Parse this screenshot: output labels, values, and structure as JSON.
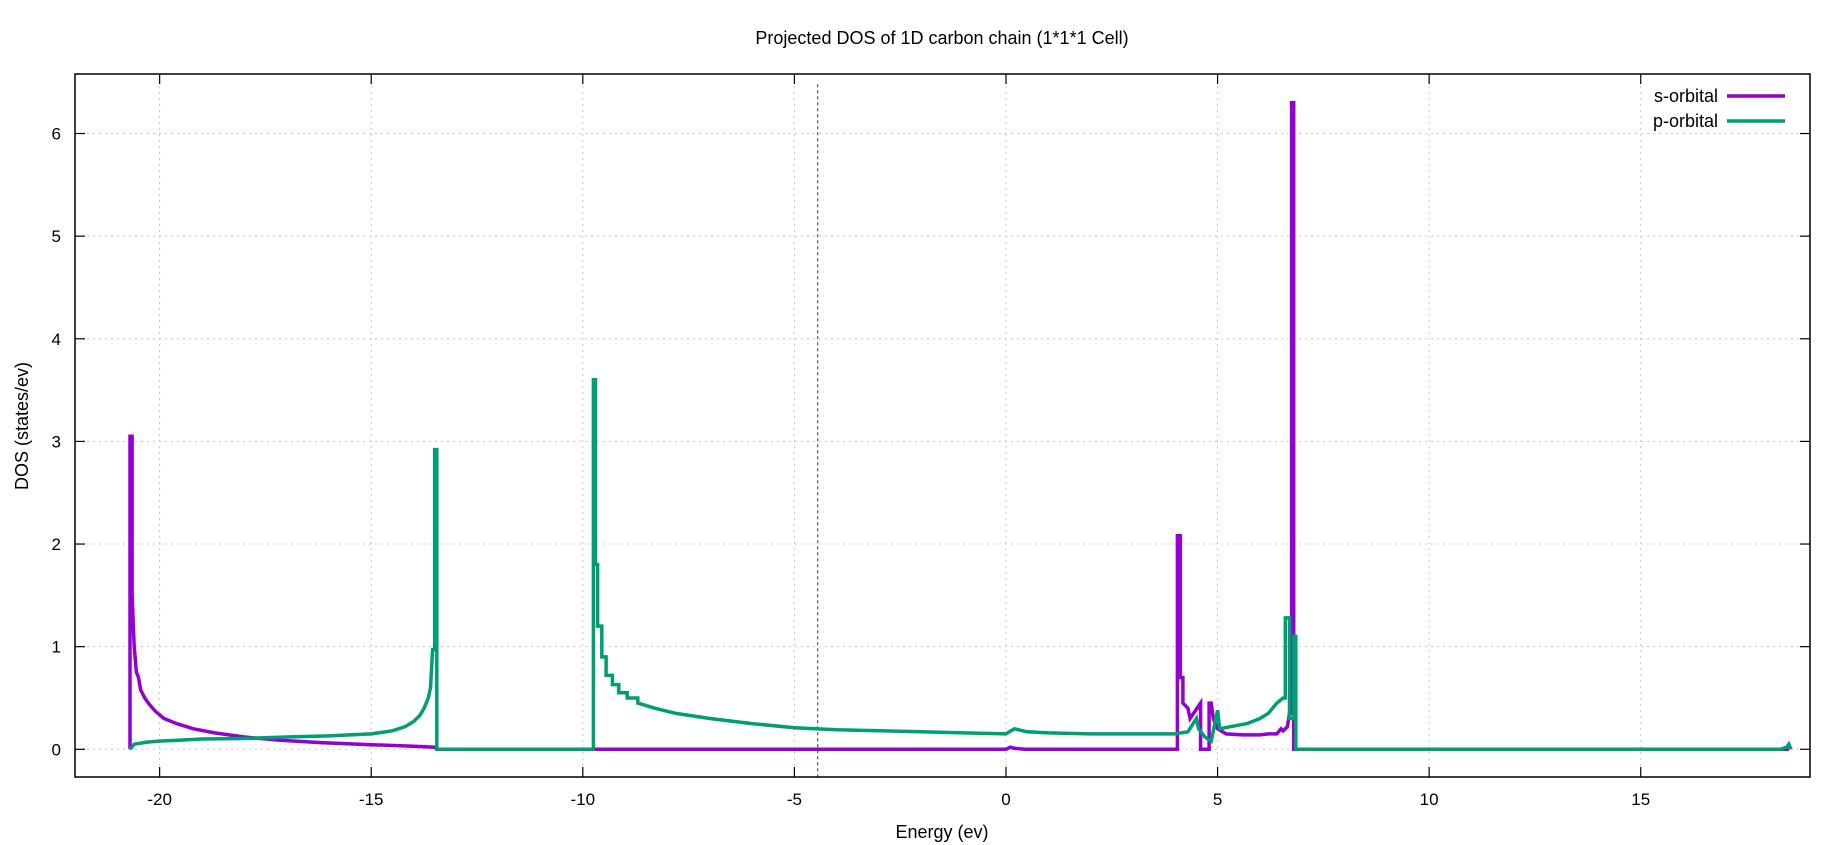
{
  "chart_data": {
    "type": "line",
    "title": "Projected DOS of 1D carbon chain (1*1*1 Cell)",
    "xlabel": "Energy (ev)",
    "ylabel": "DOS (states/ev)",
    "xlim": [
      -22,
      19
    ],
    "ylim": [
      -0.27,
      6.58
    ],
    "xticks": [
      -20,
      -15,
      -10,
      -5,
      0,
      5,
      10,
      15
    ],
    "yticks": [
      0,
      1,
      2,
      3,
      4,
      5,
      6
    ],
    "grid": true,
    "legend_position": "top-right",
    "vline": {
      "x": -4.45,
      "style": "dashed",
      "color": "#555555"
    },
    "series": [
      {
        "name": "s-orbital",
        "color": "#9400d3",
        "points": [
          [
            -20.7,
            0.0
          ],
          [
            -20.7,
            3.05
          ],
          [
            -20.65,
            3.05
          ],
          [
            -20.65,
            1.5
          ],
          [
            -20.6,
            1.0
          ],
          [
            -20.55,
            0.75
          ],
          [
            -20.5,
            0.7
          ],
          [
            -20.45,
            0.58
          ],
          [
            -20.35,
            0.5
          ],
          [
            -20.25,
            0.44
          ],
          [
            -20.1,
            0.37
          ],
          [
            -19.9,
            0.3
          ],
          [
            -19.6,
            0.25
          ],
          [
            -19.2,
            0.2
          ],
          [
            -18.7,
            0.16
          ],
          [
            -18.0,
            0.12
          ],
          [
            -17.2,
            0.09
          ],
          [
            -16.2,
            0.065
          ],
          [
            -15.0,
            0.045
          ],
          [
            -14.0,
            0.03
          ],
          [
            -13.5,
            0.02
          ],
          [
            -13.45,
            0.0
          ],
          [
            0.0,
            0.0
          ],
          [
            0.1,
            0.02
          ],
          [
            0.2,
            0.01
          ],
          [
            0.45,
            0.0
          ],
          [
            4.0,
            0.0
          ],
          [
            4.05,
            0.0
          ],
          [
            4.05,
            2.08
          ],
          [
            4.12,
            2.08
          ],
          [
            4.12,
            0.7
          ],
          [
            4.18,
            0.7
          ],
          [
            4.18,
            0.45
          ],
          [
            4.3,
            0.4
          ],
          [
            4.35,
            0.3
          ],
          [
            4.6,
            0.45
          ],
          [
            4.6,
            0.0
          ],
          [
            4.8,
            0.0
          ],
          [
            4.8,
            0.45
          ],
          [
            4.85,
            0.45
          ],
          [
            4.9,
            0.3
          ],
          [
            5.0,
            0.2
          ],
          [
            5.2,
            0.15
          ],
          [
            5.6,
            0.14
          ],
          [
            6.0,
            0.14
          ],
          [
            6.2,
            0.15
          ],
          [
            6.4,
            0.15
          ],
          [
            6.5,
            0.2
          ],
          [
            6.55,
            0.18
          ],
          [
            6.65,
            0.22
          ],
          [
            6.7,
            0.35
          ],
          [
            6.75,
            0.35
          ],
          [
            6.75,
            6.3
          ],
          [
            6.8,
            6.3
          ],
          [
            6.8,
            0.0
          ],
          [
            18.5,
            0.0
          ]
        ]
      },
      {
        "name": "p-orbital",
        "color": "#009e73",
        "points": [
          [
            -20.7,
            0.0
          ],
          [
            -20.6,
            0.05
          ],
          [
            -20.3,
            0.07
          ],
          [
            -20.0,
            0.08
          ],
          [
            -19.5,
            0.09
          ],
          [
            -19.0,
            0.1
          ],
          [
            -18.0,
            0.105
          ],
          [
            -17.0,
            0.12
          ],
          [
            -16.0,
            0.13
          ],
          [
            -15.0,
            0.15
          ],
          [
            -14.5,
            0.18
          ],
          [
            -14.2,
            0.22
          ],
          [
            -14.0,
            0.27
          ],
          [
            -13.85,
            0.33
          ],
          [
            -13.75,
            0.4
          ],
          [
            -13.65,
            0.5
          ],
          [
            -13.6,
            0.6
          ],
          [
            -13.55,
            0.97
          ],
          [
            -13.5,
            0.97
          ],
          [
            -13.5,
            2.92
          ],
          [
            -13.45,
            2.92
          ],
          [
            -13.45,
            0.0
          ],
          [
            -9.8,
            0.0
          ],
          [
            -9.75,
            0.0
          ],
          [
            -9.75,
            3.6
          ],
          [
            -9.7,
            3.6
          ],
          [
            -9.7,
            1.8
          ],
          [
            -9.65,
            1.8
          ],
          [
            -9.65,
            1.2
          ],
          [
            -9.55,
            1.2
          ],
          [
            -9.55,
            0.9
          ],
          [
            -9.45,
            0.9
          ],
          [
            -9.45,
            0.72
          ],
          [
            -9.3,
            0.72
          ],
          [
            -9.3,
            0.63
          ],
          [
            -9.15,
            0.63
          ],
          [
            -9.15,
            0.55
          ],
          [
            -8.95,
            0.55
          ],
          [
            -8.95,
            0.5
          ],
          [
            -8.7,
            0.5
          ],
          [
            -8.7,
            0.45
          ],
          [
            -8.3,
            0.4
          ],
          [
            -7.8,
            0.35
          ],
          [
            -7.0,
            0.3
          ],
          [
            -6.0,
            0.25
          ],
          [
            -5.0,
            0.21
          ],
          [
            -4.0,
            0.19
          ],
          [
            -3.0,
            0.18
          ],
          [
            -2.0,
            0.17
          ],
          [
            -1.0,
            0.16
          ],
          [
            0.0,
            0.15
          ],
          [
            0.2,
            0.2
          ],
          [
            0.5,
            0.17
          ],
          [
            1.0,
            0.16
          ],
          [
            2.0,
            0.15
          ],
          [
            3.0,
            0.15
          ],
          [
            4.0,
            0.15
          ],
          [
            4.3,
            0.17
          ],
          [
            4.5,
            0.3
          ],
          [
            4.55,
            0.2
          ],
          [
            4.7,
            0.12
          ],
          [
            4.85,
            0.08
          ],
          [
            5.0,
            0.38
          ],
          [
            5.05,
            0.2
          ],
          [
            5.3,
            0.22
          ],
          [
            5.7,
            0.25
          ],
          [
            6.0,
            0.3
          ],
          [
            6.2,
            0.35
          ],
          [
            6.4,
            0.45
          ],
          [
            6.55,
            0.5
          ],
          [
            6.6,
            0.5
          ],
          [
            6.6,
            1.28
          ],
          [
            6.7,
            1.28
          ],
          [
            6.7,
            0.3
          ],
          [
            6.8,
            0.3
          ],
          [
            6.8,
            1.1
          ],
          [
            6.85,
            1.1
          ],
          [
            6.85,
            0.0
          ],
          [
            18.3,
            0.0
          ],
          [
            18.45,
            0.02
          ],
          [
            18.5,
            0.05
          ],
          [
            18.55,
            0.0
          ]
        ]
      }
    ]
  }
}
